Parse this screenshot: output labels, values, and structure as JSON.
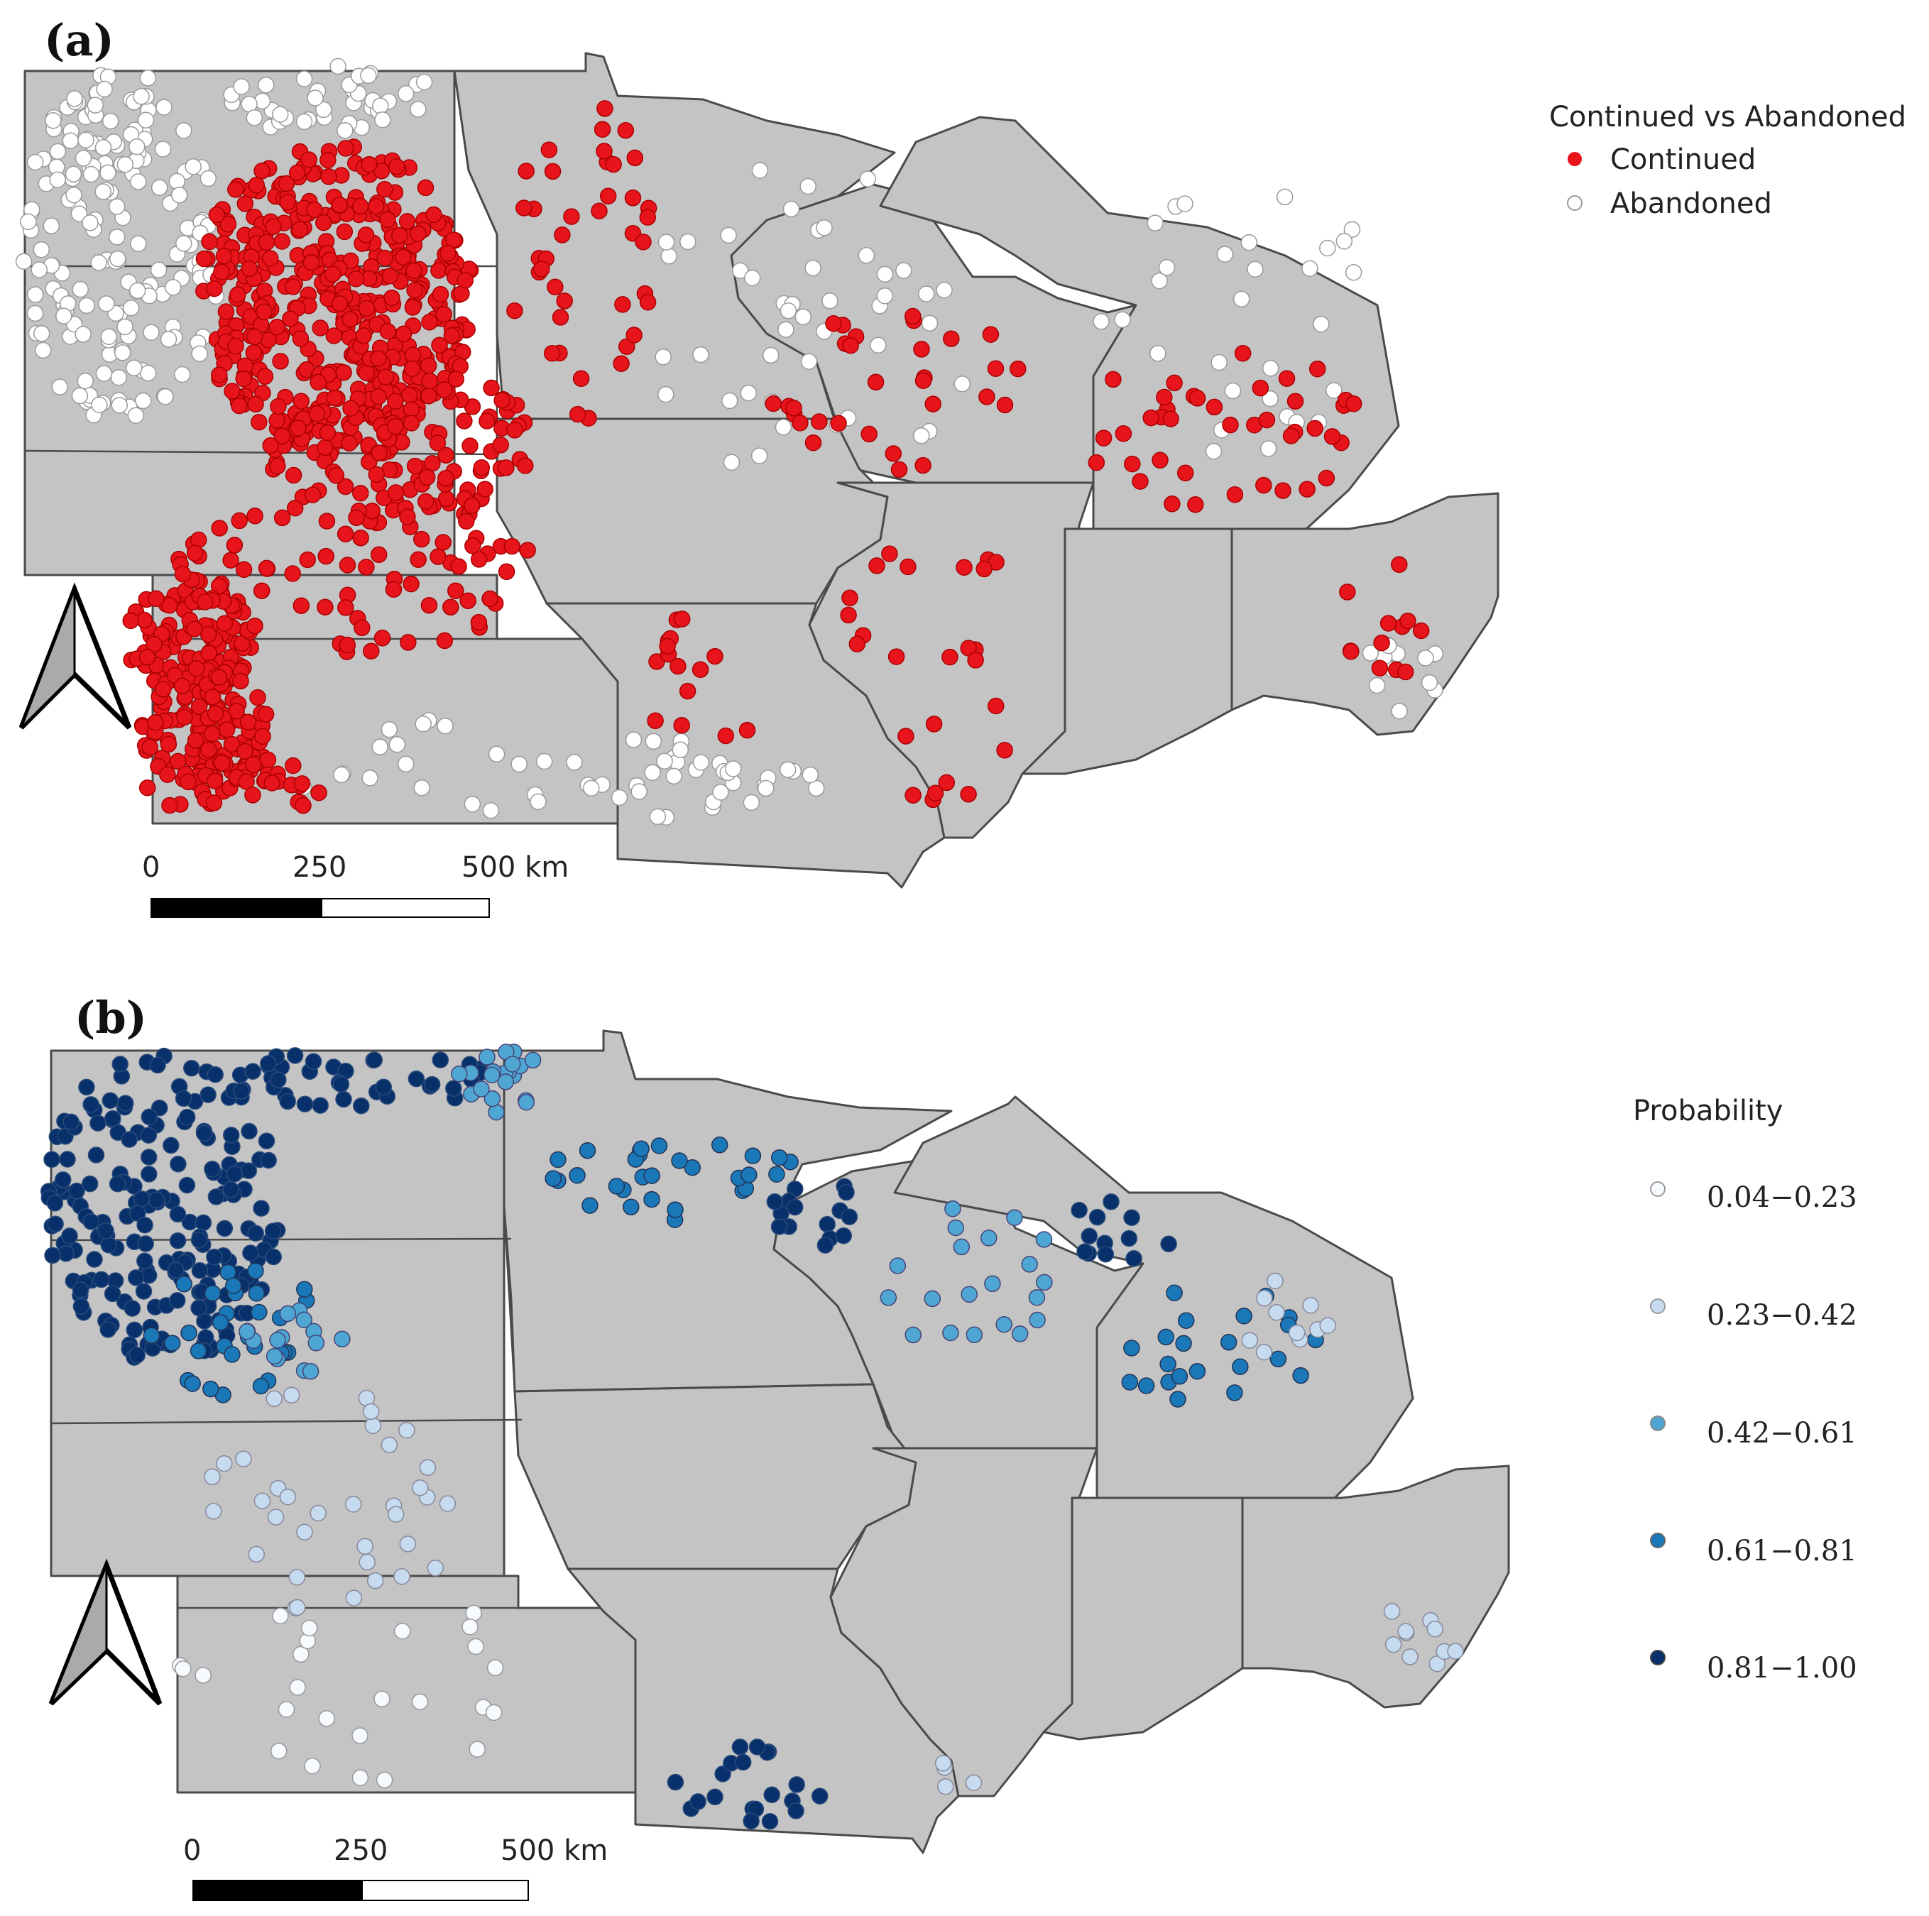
{
  "panel_a": {
    "label": "(a)",
    "legend": {
      "title": "Continued vs Abandoned",
      "items": [
        {
          "label": "Continued",
          "color": "#e8141c"
        },
        {
          "label": "Abandoned",
          "color": "#ffffff"
        }
      ]
    },
    "scale_bar": {
      "ticks": [
        "0",
        "250",
        "500 km"
      ]
    }
  },
  "panel_b": {
    "label": "(b)",
    "legend": {
      "title": "Probability",
      "items": [
        {
          "label": "0.04−0.23",
          "color": "#f7fbff"
        },
        {
          "label": "0.23−0.42",
          "color": "#c6dbef"
        },
        {
          "label": "0.42−0.61",
          "color": "#4fa6d3"
        },
        {
          "label": "0.61−0.81",
          "color": "#1a77b8"
        },
        {
          "label": "0.81−1.00",
          "color": "#08306b"
        }
      ]
    },
    "scale_bar": {
      "ticks": [
        "0",
        "250",
        "500 km"
      ]
    }
  },
  "colors": {
    "land": "#c4c4c4",
    "border": "#4a4a4a",
    "continued": "#e8141c",
    "abandoned": "#ffffff"
  }
}
